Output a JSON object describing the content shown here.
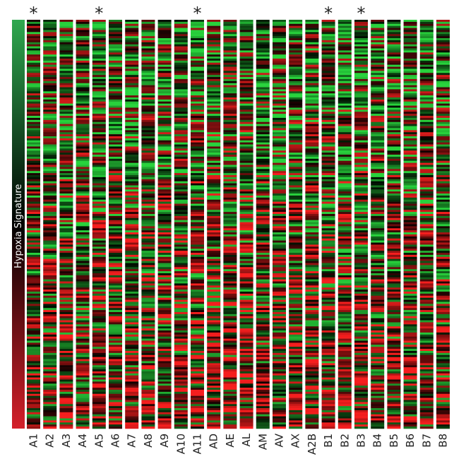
{
  "colorbar": {
    "label": "Hypoxia Signature"
  },
  "star": "*",
  "columns": [
    {
      "label": "A1",
      "starred": true
    },
    {
      "label": "A2",
      "starred": false
    },
    {
      "label": "A3",
      "starred": false
    },
    {
      "label": "A4",
      "starred": false
    },
    {
      "label": "A5",
      "starred": true
    },
    {
      "label": "A6",
      "starred": false
    },
    {
      "label": "A7",
      "starred": false
    },
    {
      "label": "A8",
      "starred": false
    },
    {
      "label": "A9",
      "starred": false
    },
    {
      "label": "A10",
      "starred": false
    },
    {
      "label": "A11",
      "starred": true
    },
    {
      "label": "AD",
      "starred": false
    },
    {
      "label": "AE",
      "starred": false
    },
    {
      "label": "AL",
      "starred": false
    },
    {
      "label": "AM",
      "starred": false
    },
    {
      "label": "AV",
      "starred": false
    },
    {
      "label": "AX",
      "starred": false
    },
    {
      "label": "A2B",
      "starred": false
    },
    {
      "label": "B1",
      "starred": true
    },
    {
      "label": "B2",
      "starred": false
    },
    {
      "label": "B3",
      "starred": true
    },
    {
      "label": "B4",
      "starred": false
    },
    {
      "label": "B5",
      "starred": false
    },
    {
      "label": "B6",
      "starred": false
    },
    {
      "label": "B7",
      "starred": false
    },
    {
      "label": "B8",
      "starred": false
    }
  ]
}
